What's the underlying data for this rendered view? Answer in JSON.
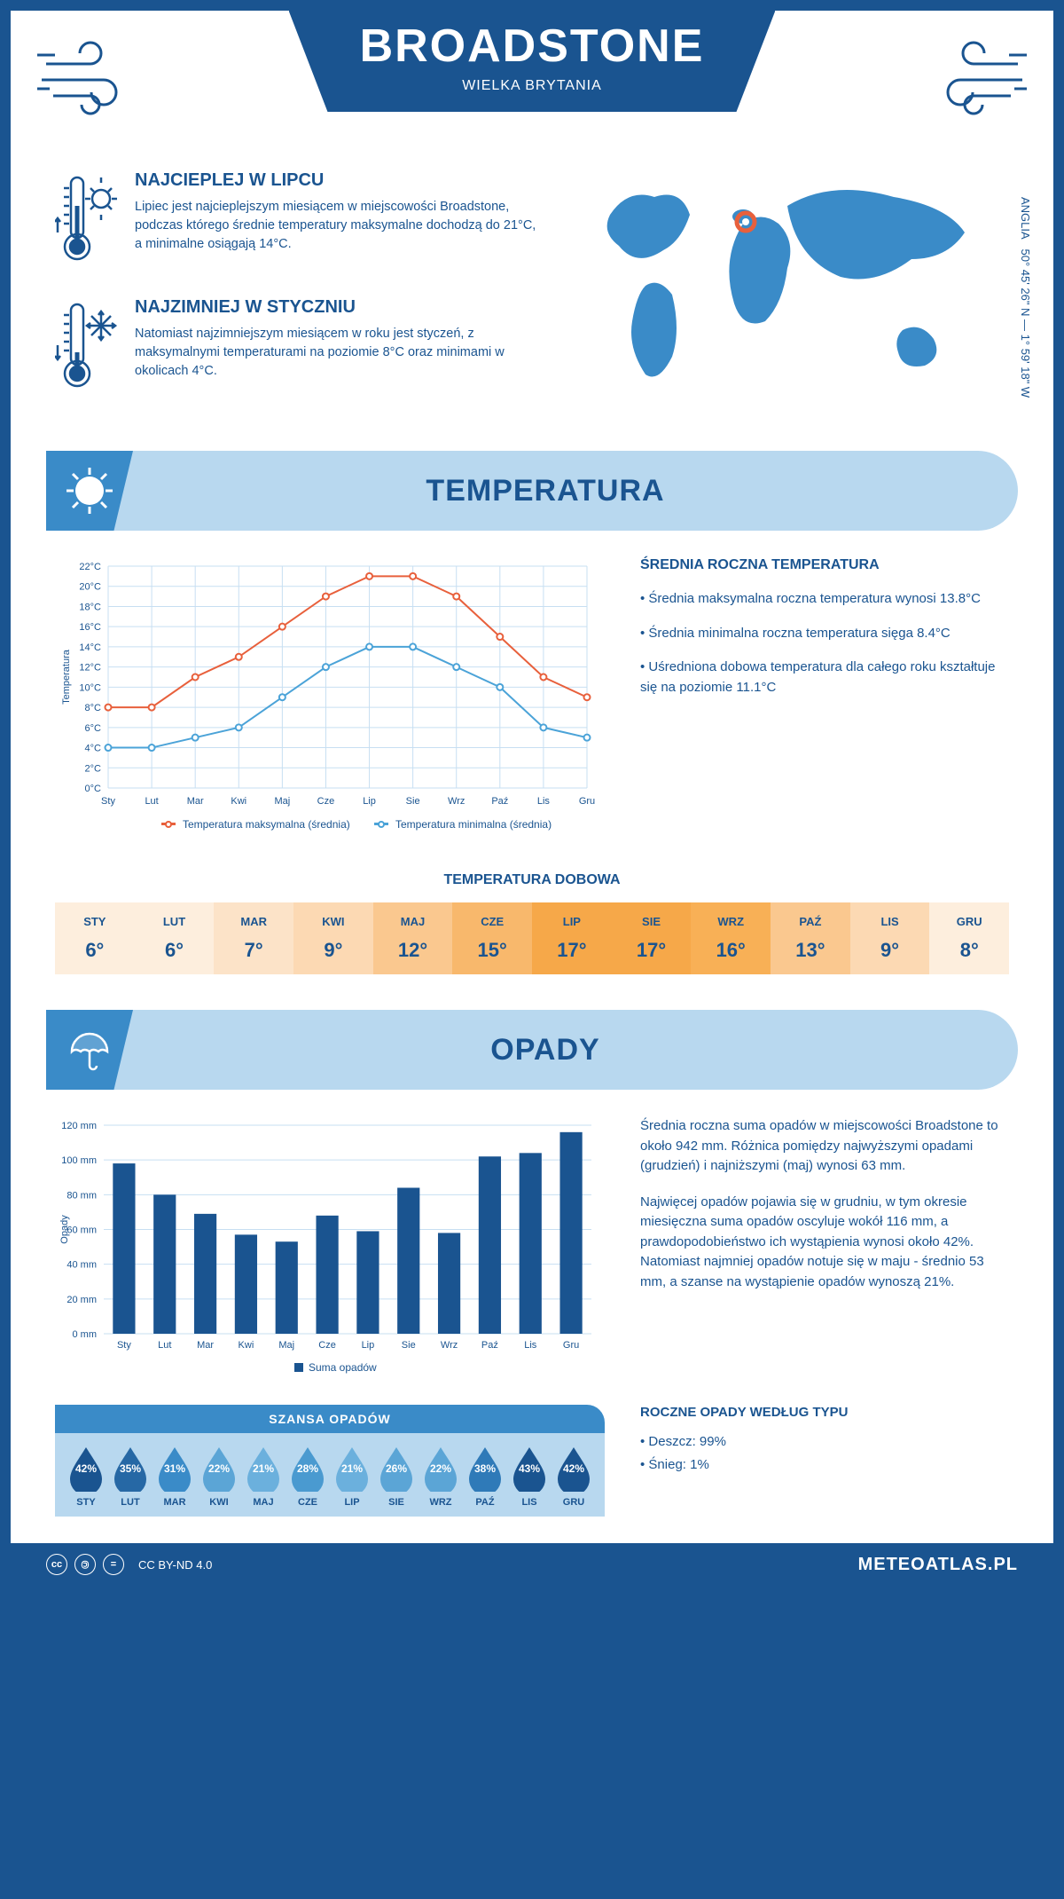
{
  "header": {
    "title": "BROADSTONE",
    "country": "WIELKA BRYTANIA",
    "coords": "50° 45' 26\" N — 1° 59' 18\" W",
    "region": "ANGLIA"
  },
  "warmest": {
    "title": "NAJCIEPLEJ W LIPCU",
    "text": "Lipiec jest najcieplejszym miesiącem w miejscowości Broadstone, podczas którego średnie temperatury maksymalne dochodzą do 21°C, a minimalne osiągają 14°C."
  },
  "coldest": {
    "title": "NAJZIMNIEJ W STYCZNIU",
    "text": "Natomiast najzimniejszym miesiącem w roku jest styczeń, z maksymalnymi temperaturami na poziomie 8°C oraz minimami w okolicach 4°C."
  },
  "temperature": {
    "section_title": "TEMPERATURA",
    "y_label": "Temperatura",
    "months": [
      "Sty",
      "Lut",
      "Mar",
      "Kwi",
      "Maj",
      "Cze",
      "Lip",
      "Sie",
      "Wrz",
      "Paź",
      "Lis",
      "Gru"
    ],
    "y_ticks": [
      0,
      2,
      4,
      6,
      8,
      10,
      12,
      14,
      16,
      18,
      20,
      22
    ],
    "max_series": [
      8,
      8,
      11,
      13,
      16,
      19,
      21,
      21,
      19,
      15,
      11,
      9
    ],
    "min_series": [
      4,
      4,
      5,
      6,
      9,
      12,
      14,
      14,
      12,
      10,
      6,
      5
    ],
    "max_color": "#e8603c",
    "min_color": "#4ba3d8",
    "grid_color": "#c7dff2",
    "legend_max": "Temperatura maksymalna (średnia)",
    "legend_min": "Temperatura minimalna (średnia)",
    "annual": {
      "title": "ŚREDNIA ROCZNA TEMPERATURA",
      "items": [
        "Średnia maksymalna roczna temperatura wynosi 13.8°C",
        "Średnia minimalna roczna temperatura sięga 8.4°C",
        "Uśredniona dobowa temperatura dla całego roku kształtuje się na poziomie 11.1°C"
      ]
    },
    "daily": {
      "title": "TEMPERATURA DOBOWA",
      "months": [
        "STY",
        "LUT",
        "MAR",
        "KWI",
        "MAJ",
        "CZE",
        "LIP",
        "SIE",
        "WRZ",
        "PAŹ",
        "LIS",
        "GRU"
      ],
      "values": [
        "6°",
        "6°",
        "7°",
        "9°",
        "12°",
        "15°",
        "17°",
        "17°",
        "16°",
        "13°",
        "9°",
        "8°"
      ],
      "colors": [
        "#fdeedd",
        "#fdeedd",
        "#fce3c8",
        "#fcd9b3",
        "#fac88f",
        "#f8b86c",
        "#f6a849",
        "#f6a849",
        "#f8b056",
        "#fac88f",
        "#fcd9b3",
        "#fdeedd"
      ]
    }
  },
  "precip": {
    "section_title": "OPADY",
    "y_label": "Opady",
    "months": [
      "Sty",
      "Lut",
      "Mar",
      "Kwi",
      "Maj",
      "Cze",
      "Lip",
      "Sie",
      "Wrz",
      "Paź",
      "Lis",
      "Gru"
    ],
    "y_ticks": [
      0,
      20,
      40,
      60,
      80,
      100,
      120
    ],
    "values": [
      98,
      80,
      69,
      57,
      53,
      68,
      59,
      84,
      58,
      102,
      104,
      116
    ],
    "bar_color": "#1a5490",
    "legend": "Suma opadów",
    "para1": "Średnia roczna suma opadów w miejscowości Broadstone to około 942 mm. Różnica pomiędzy najwyższymi opadami (grudzień) i najniższymi (maj) wynosi 63 mm.",
    "para2": "Najwięcej opadów pojawia się w grudniu, w tym okresie miesięczna suma opadów oscyluje wokół 116 mm, a prawdopodobieństwo ich wystąpienia wynosi około 42%. Natomiast najmniej opadów notuje się w maju - średnio 53 mm, a szanse na wystąpienie opadów wynoszą 21%.",
    "chance": {
      "title": "SZANSA OPADÓW",
      "months": [
        "STY",
        "LUT",
        "MAR",
        "KWI",
        "MAJ",
        "CZE",
        "LIP",
        "SIE",
        "WRZ",
        "PAŹ",
        "LIS",
        "GRU"
      ],
      "values": [
        "42%",
        "35%",
        "31%",
        "22%",
        "21%",
        "28%",
        "21%",
        "26%",
        "22%",
        "38%",
        "43%",
        "42%"
      ],
      "colors": [
        "#1a5490",
        "#2668a5",
        "#3a8bc8",
        "#5ba5d6",
        "#6bb0dd",
        "#4a9ad0",
        "#6bb0dd",
        "#5ba5d6",
        "#5ba5d6",
        "#2f7ab8",
        "#1a5490",
        "#1a5490"
      ]
    },
    "by_type": {
      "title": "ROCZNE OPADY WEDŁUG TYPU",
      "items": [
        "Deszcz: 99%",
        "Śnieg: 1%"
      ]
    }
  },
  "footer": {
    "license": "CC BY-ND 4.0",
    "site": "METEOATLAS.PL"
  }
}
